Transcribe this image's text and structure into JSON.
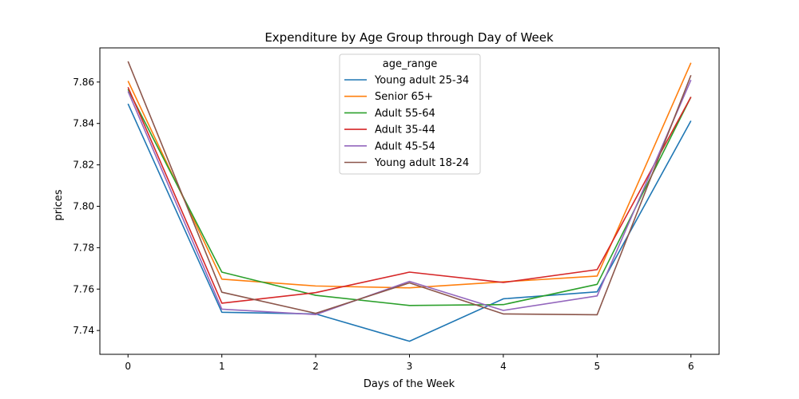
{
  "chart_data": {
    "type": "line",
    "title": "Expenditure by Age Group through Day of Week",
    "xlabel": "Days of the Week",
    "ylabel": "prices",
    "x": [
      0,
      1,
      2,
      3,
      4,
      5,
      6
    ],
    "xlim": [
      -0.3,
      6.3
    ],
    "ylim": [
      7.7285,
      7.8765
    ],
    "xticks": [
      0,
      1,
      2,
      3,
      4,
      5,
      6
    ],
    "yticks": [
      7.74,
      7.76,
      7.78,
      7.8,
      7.82,
      7.84,
      7.86
    ],
    "grid": false,
    "legend": {
      "title": "age_range",
      "placement": "upper-center"
    },
    "series": [
      {
        "name": "Young adult 25-34",
        "color": "#1f77b4",
        "values": [
          7.8495,
          7.7488,
          7.748,
          7.7348,
          7.7553,
          7.7587,
          7.8413
        ]
      },
      {
        "name": "Senior 65+",
        "color": "#ff7f0e",
        "values": [
          7.8605,
          7.7648,
          7.7615,
          7.7606,
          7.7635,
          7.7663,
          7.8693
        ]
      },
      {
        "name": "Adult 55-64",
        "color": "#2ca02c",
        "values": [
          7.8565,
          7.7682,
          7.757,
          7.7521,
          7.7525,
          7.7623,
          7.8528
        ]
      },
      {
        "name": "Adult 35-44",
        "color": "#d62728",
        "values": [
          7.8575,
          7.7532,
          7.7583,
          7.7682,
          7.7632,
          7.7694,
          7.8528
        ]
      },
      {
        "name": "Adult 45-54",
        "color": "#9467bd",
        "values": [
          7.8555,
          7.7503,
          7.7477,
          7.7637,
          7.7497,
          7.7567,
          7.861
        ]
      },
      {
        "name": "Young adult 18-24",
        "color": "#8c564b",
        "values": [
          7.87,
          7.7585,
          7.7483,
          7.763,
          7.748,
          7.7476,
          7.8633
        ]
      }
    ]
  }
}
